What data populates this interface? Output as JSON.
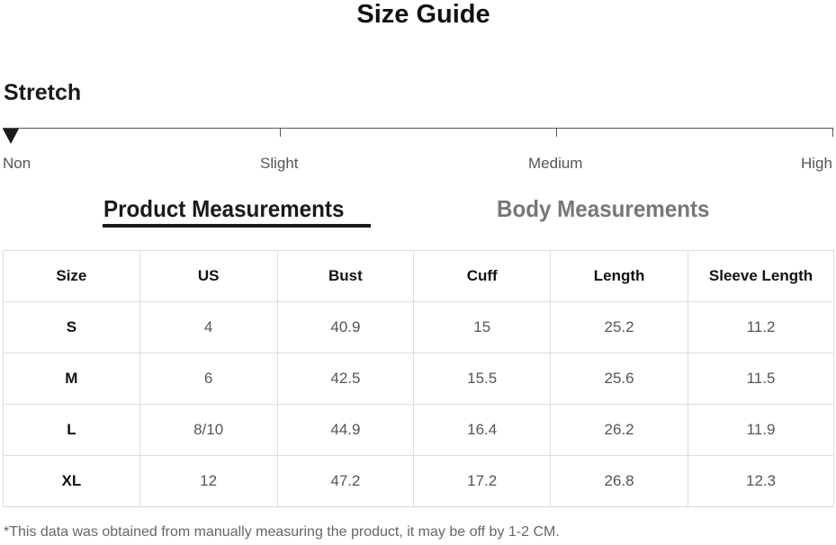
{
  "title": "Size Guide",
  "stretch": {
    "heading": "Stretch",
    "levels": [
      "Non",
      "Slight",
      "Medium",
      "High"
    ],
    "selected": "Non"
  },
  "tabs": [
    {
      "label": "Product Measurements",
      "active": true
    },
    {
      "label": "Body Measurements",
      "active": false
    }
  ],
  "table": {
    "headers": [
      "Size",
      "US",
      "Bust",
      "Cuff",
      "Length",
      "Sleeve Length"
    ],
    "rows": [
      [
        "S",
        "4",
        "40.9",
        "15",
        "25.2",
        "11.2"
      ],
      [
        "M",
        "6",
        "42.5",
        "15.5",
        "25.6",
        "11.5"
      ],
      [
        "L",
        "8/10",
        "44.9",
        "16.4",
        "26.2",
        "11.9"
      ],
      [
        "XL",
        "12",
        "47.2",
        "17.2",
        "26.8",
        "12.3"
      ]
    ]
  },
  "note": "*This data was obtained from manually measuring the product, it may be off by 1-2 CM."
}
